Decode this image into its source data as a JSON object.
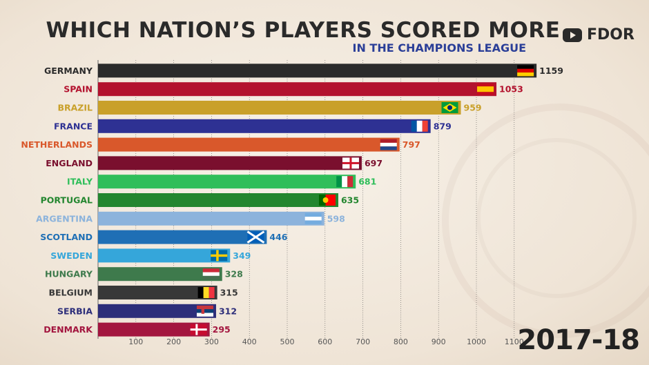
{
  "title": "WHICH NATION’S PLAYERS SCORED MORE",
  "subtitle": "IN THE CHAMPIONS LEAGUE",
  "brand": {
    "icon": "youtube-icon",
    "name": "FDOR"
  },
  "year": "2017-18",
  "chart_data": {
    "type": "bar",
    "orientation": "horizontal",
    "categories": [
      "GERMANY",
      "SPAIN",
      "BRAZIL",
      "FRANCE",
      "NETHERLANDS",
      "ENGLAND",
      "ITALY",
      "PORTUGAL",
      "ARGENTINA",
      "SCOTLAND",
      "SWEDEN",
      "HUNGARY",
      "BELGIUM",
      "SERBIA",
      "DENMARK"
    ],
    "values": [
      1159,
      1053,
      959,
      879,
      797,
      697,
      681,
      635,
      598,
      446,
      349,
      328,
      315,
      312,
      295
    ],
    "colors": [
      "#2b2b2b",
      "#b3122e",
      "#c9a02a",
      "#2e3193",
      "#d9582b",
      "#7a0f2e",
      "#2fbe5a",
      "#23862f",
      "#8cb3dc",
      "#1f6fb5",
      "#35a6da",
      "#3e7a4c",
      "#383838",
      "#2d2e7a",
      "#a3163f"
    ],
    "label_colors": [
      "#2b2b2b",
      "#b3122e",
      "#c9a02a",
      "#2e3193",
      "#d9582b",
      "#7a0f2e",
      "#2fbe5a",
      "#23862f",
      "#8cb3dc",
      "#1f6fb5",
      "#35a6da",
      "#3e7a4c",
      "#383838",
      "#2d2e7a",
      "#a3163f"
    ],
    "flags": [
      "germany-flag",
      "spain-flag",
      "brazil-flag",
      "france-flag",
      "netherlands-flag",
      "england-flag",
      "italy-flag",
      "portugal-flag",
      "argentina-flag",
      "scotland-flag",
      "sweden-flag",
      "hungary-flag",
      "belgium-flag",
      "serbia-flag",
      "denmark-flag"
    ],
    "xticks": [
      100,
      200,
      300,
      400,
      500,
      600,
      700,
      800,
      900,
      1000,
      1100
    ],
    "xlim": [
      0,
      1180
    ],
    "grid": true
  }
}
